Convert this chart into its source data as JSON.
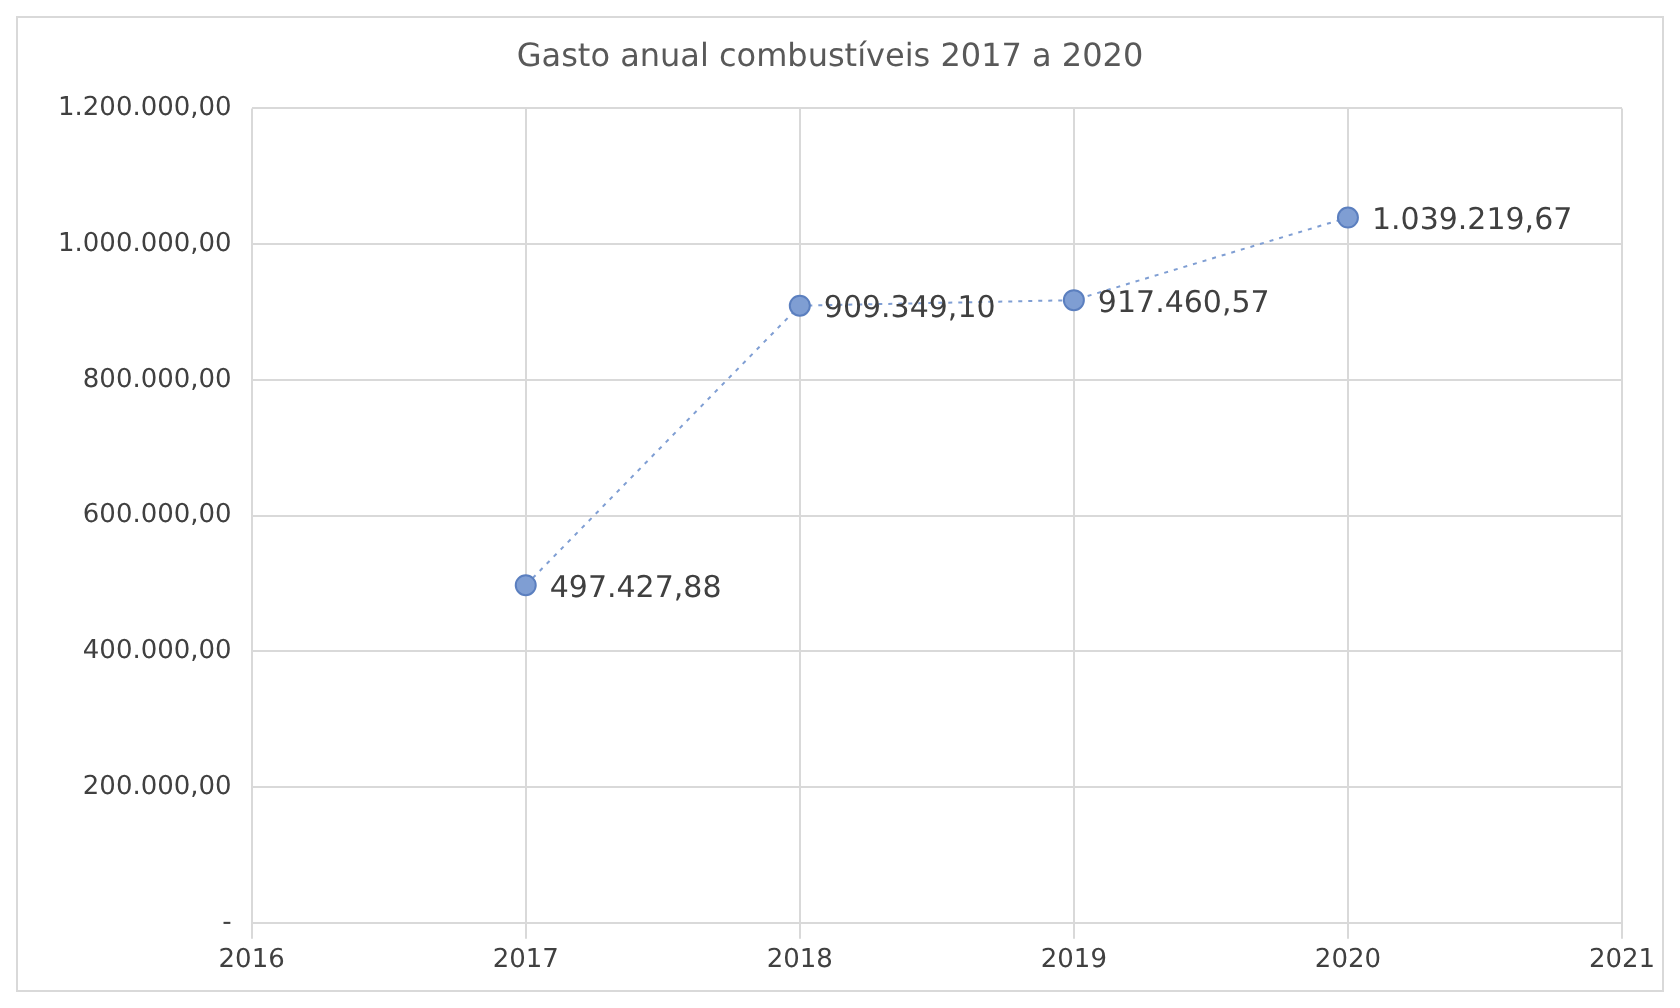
{
  "chart_data": {
    "type": "line",
    "title": "Gasto anual combustíveis 2017 a 2020",
    "x": [
      2017,
      2018,
      2019,
      2020
    ],
    "series": [
      {
        "color": "#7f9ed3",
        "values": [
          497427.88,
          909349.1,
          917460.57,
          1039219.67
        ],
        "value_labels": [
          "497.427,88",
          "909.349,10",
          "917.460,57",
          "1.039.219,67"
        ]
      }
    ],
    "xlim": [
      2016,
      2021
    ],
    "xticks": [
      2016,
      2017,
      2018,
      2019,
      2020,
      2021
    ],
    "ylim": [
      0,
      1200000
    ],
    "yticks": [
      {
        "value": 0,
        "label": "-"
      },
      {
        "value": 200000,
        "label": "200.000,00"
      },
      {
        "value": 400000,
        "label": "400.000,00"
      },
      {
        "value": 600000,
        "label": "600.000,00"
      },
      {
        "value": 800000,
        "label": "800.000,00"
      },
      {
        "value": 1000000,
        "label": "1.000.000,00"
      },
      {
        "value": 1200000,
        "label": "1.200.000,00"
      }
    ],
    "grid": true,
    "legend": false,
    "marker": "circle",
    "line_style": "dotted"
  }
}
